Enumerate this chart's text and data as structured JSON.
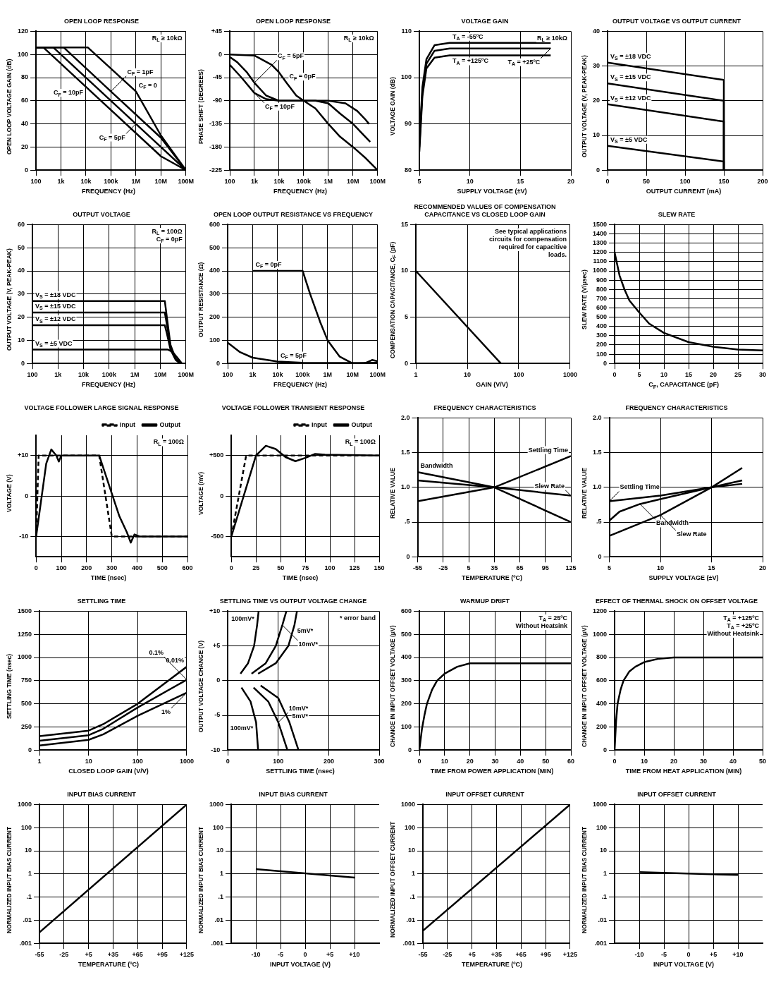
{
  "chart_data": [
    {
      "type": "line",
      "title": "OPEN LOOP RESPONSE",
      "xlabel": "FREQUENCY (Hz)",
      "ylabel": "OPEN LOOP VOLTAGE GAIN (dB)",
      "log": "x",
      "grid": true,
      "xlim": [
        100,
        100000000
      ],
      "xticks": [
        100,
        {
          "value": 1000,
          "label": "1k"
        },
        {
          "value": 10000,
          "label": "10k"
        },
        {
          "value": 100000,
          "label": "100k"
        },
        {
          "value": 1000000,
          "label": "1M"
        },
        {
          "value": 10000000,
          "label": "10M"
        },
        {
          "value": 100000000,
          "label": "100M"
        }
      ],
      "ylim": [
        0,
        120
      ],
      "yticks": [
        0,
        20,
        40,
        60,
        80,
        100,
        120
      ],
      "series": [
        {
          "color": "#000000",
          "x": [
            100,
            12000,
            1000000,
            10000000,
            100000000
          ],
          "values": [
            106,
            106,
            68,
            30,
            0
          ]
        },
        {
          "color": "#000000",
          "x": [
            100,
            1300,
            100000,
            10000000,
            100000000
          ],
          "values": [
            106,
            106,
            68,
            28,
            0
          ]
        },
        {
          "color": "#000000",
          "x": [
            100,
            500,
            1000000,
            10000000,
            100000000
          ],
          "values": [
            106,
            106,
            40,
            20,
            0
          ]
        },
        {
          "color": "#000000",
          "x": [
            100,
            200,
            10000,
            10000000,
            100000000
          ],
          "values": [
            106,
            106,
            72,
            12,
            0
          ]
        }
      ],
      "annotations": [
        "R$_{L}$ ≥ 10kΩ",
        {
          "text": "C$_{F}$ = 0",
          "x": 1000000,
          "y": 68
        },
        {
          "text": "C$_{F}$ = 1pF",
          "x": 100000,
          "y": 68
        },
        {
          "text": "C$_{F}$ = 5pF",
          "x": 1000000,
          "y": 40
        },
        {
          "text": "C$_{F}$ = 10pF",
          "x": 10000,
          "y": 72
        }
      ]
    },
    {
      "type": "line",
      "title": "OPEN LOOP RESPONSE",
      "xlabel": "FREQUENCY (Hz)",
      "ylabel": "PHASE SHIFT (DEGREES)",
      "log": "x",
      "grid": true,
      "xlim": [
        100,
        100000000
      ],
      "xticks": [
        100,
        {
          "value": 1000,
          "label": "1k"
        },
        {
          "value": 10000,
          "label": "10k"
        },
        {
          "value": 100000,
          "label": "100k"
        },
        {
          "value": 1000000,
          "label": "1M"
        },
        {
          "value": 10000000,
          "label": "10M"
        },
        {
          "value": 100000000,
          "label": "100M"
        }
      ],
      "ylim": [
        -225,
        45
      ],
      "yticks": [
        -225,
        -180,
        -135,
        -90,
        -45,
        0,
        {
          "value": 45,
          "label": "+45"
        }
      ],
      "series": [
        {
          "color": "#000000",
          "x": [
            100,
            1000,
            5000,
            10000,
            20000,
            50000,
            100000,
            1000000,
            5000000,
            15000000,
            30000000,
            45000000
          ],
          "values": [
            0,
            -2,
            -20,
            -35,
            -55,
            -80,
            -90,
            -90,
            -95,
            -110,
            -125,
            -135
          ]
        },
        {
          "color": "#000000",
          "x": [
            100,
            200,
            500,
            1000,
            3000,
            10000,
            100000,
            300000,
            1000000,
            3000000,
            10000000,
            20000000,
            50000000
          ],
          "values": [
            -5,
            -15,
            -35,
            -55,
            -80,
            -90,
            -90,
            -90,
            -95,
            -115,
            -135,
            -150,
            -170
          ]
        },
        {
          "color": "#000000",
          "x": [
            100,
            300,
            1000,
            3000,
            10000,
            100000,
            300000,
            1000000,
            3000000,
            10000000,
            30000000,
            100000000
          ],
          "values": [
            -20,
            -45,
            -75,
            -87,
            -90,
            -90,
            -105,
            -135,
            -160,
            -180,
            -200,
            -225
          ]
        }
      ],
      "annotations": [
        "R$_{L}$ ≥ 10kΩ",
        {
          "text": "C$_{F}$ = 0pF",
          "x": 20000,
          "y": -55
        },
        {
          "text": "C$_{F}$ = 5pF",
          "x": 1000,
          "y": -55
        },
        {
          "text": "C$_{F}$ = 10pF",
          "x": 1000,
          "y": -75
        }
      ]
    },
    {
      "type": "line",
      "title": "VOLTAGE GAIN",
      "xlabel": "SUPPLY VOLTAGE (±V)",
      "ylabel": "VOLTAGE GAIN (dB)",
      "grid": true,
      "xlim": [
        5,
        20
      ],
      "xticks": [
        5,
        10,
        15,
        20
      ],
      "ylim": [
        80,
        110
      ],
      "yticks": [
        80,
        90,
        100,
        110
      ],
      "series": [
        {
          "color": "#000000",
          "x": [
            5,
            5.3,
            5.7,
            6.5,
            8,
            18
          ],
          "values": [
            86,
            98,
            104,
            107,
            107.5,
            107.5
          ]
        },
        {
          "color": "#000000",
          "x": [
            5,
            5.3,
            5.7,
            6.5,
            8,
            18
          ],
          "values": [
            85,
            97,
            103,
            105.8,
            106.3,
            106.3
          ]
        },
        {
          "color": "#000000",
          "x": [
            5,
            5.3,
            5.7,
            6.5,
            8,
            18
          ],
          "values": [
            84,
            96,
            102,
            104.3,
            104.8,
            104.8
          ]
        }
      ],
      "annotations": [
        "R$_{L}$ ≥ 10kΩ",
        {
          "text": "T$_{A}$ = -55ºC",
          "x": 8,
          "y": 107.5
        },
        {
          "text": "T$_{A}$ = +125ºC",
          "x": 8,
          "y": 104.8
        },
        {
          "text": "T$_{A}$ = +25ºC",
          "x": 18,
          "y": 106.3
        }
      ]
    },
    {
      "type": "line",
      "title": "OUTPUT VOLTAGE VS OUTPUT CURRENT",
      "xlabel": "OUTPUT CURRENT (mA)",
      "ylabel": "OUTPUT VOLTAGE (V, PEAK-PEAK)",
      "grid": true,
      "xlim": [
        0,
        200
      ],
      "xticks": [
        0,
        50,
        100,
        150,
        200
      ],
      "ylim": [
        0,
        40
      ],
      "yticks": [
        0,
        10,
        20,
        30,
        40
      ],
      "series": [
        {
          "color": "#000000",
          "x": [
            0,
            150,
            150
          ],
          "values": [
            31,
            26,
            0
          ]
        },
        {
          "color": "#000000",
          "x": [
            0,
            150,
            150
          ],
          "values": [
            25,
            20,
            0
          ]
        },
        {
          "color": "#000000",
          "x": [
            0,
            150,
            150
          ],
          "values": [
            19,
            14,
            0
          ]
        },
        {
          "color": "#000000",
          "x": [
            0,
            150,
            150
          ],
          "values": [
            7,
            2.5,
            0
          ]
        }
      ],
      "annotations": [
        {
          "text": "V$_{S}$ = ±18 VDC",
          "x": 0,
          "y": 31
        },
        {
          "text": "V$_{S}$ = ±15 VDC",
          "x": 0,
          "y": 25
        },
        {
          "text": "V$_{S}$ = ±12 VDC",
          "x": 0,
          "y": 19
        },
        {
          "text": "V$_{S}$ = ±5 VDC",
          "x": 0,
          "y": 7
        }
      ]
    },
    {
      "type": "line",
      "title": "OUTPUT VOLTAGE",
      "xlabel": "FREQUENCY (Hz)",
      "ylabel": "OUTPUT VOLTAGE (V, PEAK-PEAK)",
      "log": "x",
      "grid": true,
      "xlim": [
        100,
        100000000
      ],
      "xticks": [
        100,
        {
          "value": 1000,
          "label": "1k"
        },
        {
          "value": 10000,
          "label": "10k"
        },
        {
          "value": 100000,
          "label": "100k"
        },
        {
          "value": 1000000,
          "label": "1M"
        },
        {
          "value": 10000000,
          "label": "10M"
        },
        {
          "value": 100000000,
          "label": "100M"
        }
      ],
      "ylim": [
        0,
        60
      ],
      "yticks": [
        0,
        10,
        20,
        30,
        40,
        50,
        60
      ],
      "series": [
        {
          "color": "#000000",
          "x": [
            100,
            15000000,
            18000000,
            25000000,
            40000000,
            60000000
          ],
          "values": [
            27,
            27,
            20,
            8,
            2,
            0
          ]
        },
        {
          "color": "#000000",
          "x": [
            100,
            15000000,
            18000000,
            25000000,
            40000000,
            60000000
          ],
          "values": [
            22,
            22,
            17,
            7,
            2,
            0
          ]
        },
        {
          "color": "#000000",
          "x": [
            100,
            15000000,
            18000000,
            25000000,
            40000000,
            60000000
          ],
          "values": [
            16.5,
            16.5,
            13,
            6,
            1.5,
            0
          ]
        },
        {
          "color": "#000000",
          "x": [
            100,
            20000000,
            30000000,
            50000000,
            70000000
          ],
          "values": [
            6,
            6,
            5,
            2,
            0
          ]
        }
      ],
      "annotations": [
        "R$_{L}$ = 100Ω",
        "C$_{F}$ = 0pF",
        {
          "text": "V$_{S}$ = ±18 VDC",
          "x": 100,
          "y": 27
        },
        {
          "text": "V$_{S}$ = ±15 VDC",
          "x": 100,
          "y": 22
        },
        {
          "text": "V$_{S}$ = ±12 VDC",
          "x": 100,
          "y": 16.5
        },
        {
          "text": "V$_{S}$ = ±5 VDC",
          "x": 100,
          "y": 6
        }
      ]
    },
    {
      "type": "line",
      "title": "OPEN LOOP OUTPUT RESISTANCE VS FREQUENCY",
      "xlabel": "FREQUENCY (Hz)",
      "ylabel": "OUTPUT RESISTANCE (Ω)",
      "log": "x",
      "grid": true,
      "xlim": [
        100,
        100000000
      ],
      "xticks": [
        100,
        {
          "value": 1000,
          "label": "1k"
        },
        {
          "value": 10000,
          "label": "10k"
        },
        {
          "value": 100000,
          "label": "100k"
        },
        {
          "value": 1000000,
          "label": "1M"
        },
        {
          "value": 10000000,
          "label": "10M"
        },
        {
          "value": 100000000,
          "label": "100M"
        }
      ],
      "ylim": [
        0,
        600
      ],
      "yticks": [
        0,
        100,
        200,
        300,
        400,
        500,
        600
      ],
      "series": [
        {
          "color": "#000000",
          "x": [
            1000,
            100000,
            200000,
            500000,
            1000000,
            3000000,
            10000000,
            30000000,
            60000000,
            100000000
          ],
          "values": [
            400,
            400,
            300,
            180,
            100,
            30,
            0,
            0,
            15,
            10
          ]
        },
        {
          "color": "#000000",
          "x": [
            100,
            300,
            1000,
            10000,
            100000,
            10000000,
            100000000
          ],
          "values": [
            90,
            50,
            25,
            8,
            3,
            2,
            3
          ]
        }
      ],
      "annotations": [
        {
          "text": "C$_{F}$ = 0pF",
          "x": 1000,
          "y": 400
        },
        {
          "text": "C$_{F}$ = 5pF",
          "x": 10000,
          "y": 8
        }
      ]
    },
    {
      "type": "line",
      "title": "RECOMMENDED VALUES OF COMPENSATION CAPACITANCE VS CLOSED LOOP GAIN",
      "xlabel": "GAIN (V/V)",
      "ylabel": "COMPENSATION CAPACITANCE, C$_{F}$ (pF)",
      "log": "x",
      "grid": true,
      "xlim": [
        1,
        1000
      ],
      "xticks": [
        1,
        10,
        100,
        1000
      ],
      "ylim": [
        0,
        15
      ],
      "yticks": [
        0,
        5,
        10,
        15
      ],
      "series": [
        {
          "color": "#000000",
          "x": [
            1,
            45
          ],
          "values": [
            10,
            0
          ]
        }
      ],
      "annotations": [
        "See typical applications circuits for compensation required for capacitive loads."
      ]
    },
    {
      "type": "line",
      "title": "SLEW RATE",
      "xlabel": "C$_{F}$, CAPACITANCE (pF)",
      "ylabel": "SLEW RATE (V/μsec)",
      "grid": true,
      "xlim": [
        0,
        30
      ],
      "xticks": [
        0,
        5,
        10,
        15,
        20,
        25,
        30
      ],
      "ylim": [
        0,
        1500
      ],
      "yticks": [
        0,
        100,
        200,
        300,
        400,
        500,
        600,
        700,
        800,
        900,
        1000,
        1100,
        1200,
        1300,
        1400,
        1500
      ],
      "series": [
        {
          "color": "#000000",
          "x": [
            0,
            1,
            2,
            3,
            5,
            7,
            10,
            15,
            20,
            25,
            30
          ],
          "values": [
            1200,
            950,
            800,
            680,
            550,
            430,
            330,
            230,
            180,
            150,
            140
          ]
        }
      ]
    },
    {
      "type": "line",
      "title": "VOLTAGE FOLLOWER LARGE SIGNAL RESPONSE",
      "xlabel": "TIME (nsec)",
      "ylabel": "VOLTAGE (V)",
      "grid": true,
      "legend": "top right",
      "xlim": [
        0,
        600
      ],
      "xticks": [
        0,
        100,
        200,
        300,
        400,
        500,
        600
      ],
      "ylim": [
        -15,
        15
      ],
      "yticks": [
        -10,
        0,
        {
          "value": 10,
          "label": "+10"
        }
      ],
      "series": [
        {
          "name": "Input",
          "color": "#000000",
          "line_style": "dashed",
          "x": [
            0,
            10,
            250,
            300,
            600
          ],
          "values": [
            -10,
            10,
            10,
            -10,
            -10
          ]
        },
        {
          "name": "Output",
          "color": "#000000",
          "x": [
            0,
            40,
            60,
            80,
            90,
            100,
            250,
            330,
            360,
            375,
            390,
            410,
            600
          ],
          "values": [
            -10,
            8,
            11.5,
            10,
            8.5,
            10,
            10,
            -5,
            -9,
            -11.5,
            -9.5,
            -10,
            -10
          ]
        }
      ],
      "annotations": [
        "R$_{L}$ = 100Ω"
      ]
    },
    {
      "type": "line",
      "title": "VOLTAGE FOLLOWER TRANSIENT RESPONSE",
      "xlabel": "TIME (nsec)",
      "ylabel": "VOLTAGE (mV)",
      "grid": true,
      "legend": "top right",
      "xlim": [
        0,
        150
      ],
      "xticks": [
        0,
        25,
        50,
        75,
        100,
        125,
        150
      ],
      "ylim": [
        -750,
        750
      ],
      "yticks": [
        -500,
        0,
        {
          "value": 500,
          "label": "+500"
        }
      ],
      "series": [
        {
          "name": "Input",
          "color": "#000000",
          "line_style": "dashed",
          "x": [
            0,
            15,
            150
          ],
          "values": [
            -500,
            500,
            500
          ]
        },
        {
          "name": "Output",
          "color": "#000000",
          "x": [
            0,
            25,
            35,
            45,
            55,
            65,
            75,
            85,
            95,
            150
          ],
          "values": [
            -500,
            500,
            620,
            580,
            480,
            430,
            470,
            520,
            510,
            500
          ]
        }
      ],
      "annotations": [
        "R$_{L}$ = 100Ω"
      ]
    },
    {
      "type": "line",
      "title": "FREQUENCY CHARACTERISTICS",
      "xlabel": "TEMPERATURE (ºC)",
      "ylabel": "RELATIVE VALUE",
      "grid": true,
      "xlim": [
        -55,
        125
      ],
      "xticks": [
        -55,
        -25,
        5,
        35,
        65,
        95,
        125
      ],
      "ylim": [
        0,
        2
      ],
      "yticks": [
        0,
        {
          "value": 0.5,
          "label": ".5"
        },
        {
          "value": 1,
          "label": "1.0"
        },
        {
          "value": 1.5,
          "label": "1.5"
        },
        {
          "value": 2,
          "label": "2.0"
        }
      ],
      "series": [
        {
          "color": "#000000",
          "x": [
            -55,
            35,
            125
          ],
          "values": [
            1.22,
            1,
            0.5
          ]
        },
        {
          "color": "#000000",
          "x": [
            -55,
            35,
            125
          ],
          "values": [
            0.8,
            1,
            1.45
          ]
        },
        {
          "color": "#000000",
          "x": [
            -55,
            35,
            125
          ],
          "values": [
            1.1,
            1,
            0.88
          ]
        }
      ],
      "annotations": [
        {
          "text": "Bandwidth",
          "x": -55,
          "y": 1.22
        },
        {
          "text": "Settling Time",
          "x": 125,
          "y": 1.45
        },
        {
          "text": "Slew Rate",
          "x": 125,
          "y": 0.88
        }
      ]
    },
    {
      "type": "line",
      "title": "FREQUENCY CHARACTERISTICS",
      "xlabel": "SUPPLY VOLTAGE (±V)",
      "ylabel": "RELATIVE VALUE",
      "grid": true,
      "xlim": [
        5,
        20
      ],
      "xticks": [
        5,
        10,
        15,
        20
      ],
      "ylim": [
        0,
        2
      ],
      "yticks": [
        0,
        {
          "value": 0.5,
          "label": ".5"
        },
        {
          "value": 1,
          "label": "1.0"
        },
        {
          "value": 1.5,
          "label": "1.5"
        },
        {
          "value": 2,
          "label": "2.0"
        }
      ],
      "series": [
        {
          "color": "#000000",
          "x": [
            5,
            10,
            15,
            18
          ],
          "values": [
            0.8,
            0.88,
            1,
            1.05
          ]
        },
        {
          "color": "#000000",
          "x": [
            5,
            6,
            8,
            10,
            15,
            18
          ],
          "values": [
            0.52,
            0.65,
            0.76,
            0.83,
            1,
            1.1
          ]
        },
        {
          "color": "#000000",
          "x": [
            5,
            10,
            15,
            18
          ],
          "values": [
            0.3,
            0.6,
            1,
            1.28
          ]
        }
      ],
      "annotations": [
        {
          "text": "Settling Time",
          "x": 5,
          "y": 0.8
        },
        {
          "text": "Bandwidth",
          "x": 8,
          "y": 0.76
        },
        {
          "text": "Slew Rate",
          "x": 10,
          "y": 0.6
        }
      ]
    },
    {
      "type": "line",
      "title": "SETTLING TIME",
      "xlabel": "CLOSED LOOP GAIN (V/V)",
      "ylabel": "SETTLING TIME (nsec)",
      "log": "x",
      "grid": true,
      "xlim": [
        1,
        1000
      ],
      "xticks": [
        1,
        10,
        100,
        1000
      ],
      "ylim": [
        0,
        1500
      ],
      "yticks": [
        0,
        250,
        500,
        750,
        1000,
        1250,
        1500
      ],
      "series": [
        {
          "color": "#000000",
          "x": [
            1,
            10,
            20,
            100,
            1000
          ],
          "values": [
            150,
            210,
            280,
            500,
            900
          ]
        },
        {
          "color": "#000000",
          "x": [
            1,
            10,
            20,
            100,
            1000
          ],
          "values": [
            100,
            160,
            230,
            460,
            760
          ]
        },
        {
          "color": "#000000",
          "x": [
            1,
            10,
            20,
            100,
            1000
          ],
          "values": [
            50,
            110,
            170,
            370,
            620
          ]
        }
      ],
      "annotations": [
        {
          "text": "0.01%",
          "x": 1000,
          "y": 900
        },
        {
          "text": "0.1%",
          "x": 1000,
          "y": 760
        },
        {
          "text": "1%",
          "x": 1000,
          "y": 620
        }
      ]
    },
    {
      "type": "line",
      "title": "SETTLING TIME VS OUTPUT VOLTAGE CHANGE",
      "xlabel": "SETTLING TIME (nsec)",
      "ylabel": "OUTPUT VOLTAGE CHANGE (V)",
      "grid": true,
      "xlim": [
        0,
        300
      ],
      "xticks": [
        0,
        100,
        200,
        300
      ],
      "ylim": [
        -10,
        10
      ],
      "yticks": [
        -10,
        -5,
        0,
        {
          "value": 5,
          "label": "+5"
        },
        {
          "value": 10,
          "label": "+10"
        }
      ],
      "series": [
        {
          "color": "#000000",
          "x": [
            25,
            40,
            52,
            58,
            61
          ],
          "values": [
            1,
            2.5,
            5,
            8,
            10
          ]
        },
        {
          "color": "#000000",
          "x": [
            47,
            75,
            95,
            108,
            116
          ],
          "values": [
            1,
            2.5,
            5,
            8,
            10
          ]
        },
        {
          "color": "#000000",
          "x": [
            60,
            95,
            120,
            132,
            137
          ],
          "values": [
            1,
            2.5,
            5,
            8,
            10
          ]
        },
        {
          "color": "#000000",
          "x": [
            27,
            45,
            56,
            60
          ],
          "values": [
            -1,
            -3,
            -6,
            -10
          ]
        },
        {
          "color": "#000000",
          "x": [
            51,
            80,
            100,
            118
          ],
          "values": [
            -1,
            -3,
            -6,
            -10
          ]
        },
        {
          "color": "#000000",
          "x": [
            65,
            100,
            122,
            140
          ],
          "values": [
            -0.7,
            -2.5,
            -6,
            -10
          ]
        }
      ],
      "annotations": [
        "* error band",
        {
          "text": "100mV*",
          "x": 58,
          "y": 8
        },
        {
          "text": "10mV*",
          "x": 108,
          "y": 8
        },
        {
          "text": "5mV*",
          "x": 132,
          "y": 8
        },
        {
          "text": "100mV*",
          "x": 56,
          "y": -6
        },
        {
          "text": "10mV*",
          "x": 100,
          "y": -6
        },
        {
          "text": "5mV*",
          "x": 122,
          "y": -6
        }
      ]
    },
    {
      "type": "line",
      "title": "WARMUP DRIFT",
      "xlabel": "TIME FROM POWER APPLICATION (MIN)",
      "ylabel": "CHANGE IN INPUT OFFSET VOLTAGE (μV)",
      "grid": true,
      "xlim": [
        0,
        60
      ],
      "xticks": [
        0,
        10,
        20,
        30,
        40,
        50,
        60
      ],
      "ylim": [
        0,
        600
      ],
      "yticks": [
        0,
        100,
        200,
        300,
        400,
        500,
        600
      ],
      "series": [
        {
          "color": "#000000",
          "x": [
            0,
            1,
            2,
            3,
            5,
            7,
            10,
            15,
            20,
            30,
            60
          ],
          "values": [
            0,
            90,
            150,
            200,
            260,
            300,
            330,
            360,
            375,
            375,
            375
          ]
        }
      ],
      "annotations": [
        "T$_{A}$ = 25ºC",
        "Without Heatsink"
      ]
    },
    {
      "type": "line",
      "title": "EFFECT OF THERMAL SHOCK ON OFFSET VOLTAGE",
      "xlabel": "TIME FROM HEAT APPLICATION (MIN)",
      "ylabel": "CHANGE IN INPUT OFFSET VOLTAGE (μV)",
      "grid": true,
      "xlim": [
        0,
        50
      ],
      "xticks": [
        0,
        10,
        20,
        30,
        40,
        50
      ],
      "ylim": [
        0,
        1200
      ],
      "yticks": [
        0,
        200,
        400,
        600,
        800,
        1000,
        1200
      ],
      "series": [
        {
          "color": "#000000",
          "x": [
            0,
            0.5,
            1,
            2,
            3,
            5,
            7,
            10,
            15,
            20,
            50
          ],
          "values": [
            0,
            250,
            400,
            520,
            600,
            680,
            720,
            760,
            790,
            800,
            800
          ]
        }
      ],
      "annotations": [
        "T$_{A}$ = +125ºC",
        "T$_{A}$ = +25ºC",
        "Without Heatsink"
      ]
    },
    {
      "type": "line",
      "title": "INPUT BIAS CURRENT",
      "xlabel": "TEMPERATURE (ºC)",
      "ylabel": "NORMALIZED INPUT BIAS CURRENT",
      "log": "y",
      "grid": true,
      "xlim": [
        -55,
        125
      ],
      "xticks": [
        -55,
        -25,
        {
          "value": 5,
          "label": "+5"
        },
        {
          "value": 35,
          "label": "+35"
        },
        {
          "value": 65,
          "label": "+65"
        },
        {
          "value": 95,
          "label": "+95"
        },
        {
          "value": 125,
          "label": "+125"
        }
      ],
      "ylim": [
        0.001,
        1000
      ],
      "yticks": [
        {
          "value": 0.001,
          "label": ".001"
        },
        {
          "value": 0.01,
          "label": ".01"
        },
        {
          "value": 0.1,
          "label": ".1"
        },
        1,
        10,
        100,
        1000
      ],
      "series": [
        {
          "color": "#000000",
          "x": [
            -55,
            125
          ],
          "values": [
            0.003,
            1000
          ]
        }
      ]
    },
    {
      "type": "line",
      "title": "INPUT BIAS CURRENT",
      "xlabel": "INPUT VOLTAGE (V)",
      "ylabel": "NORMALIZED INPUT BIAS CURRENT",
      "log": "y",
      "grid": true,
      "xlim": [
        -15,
        15
      ],
      "xticks": [
        -10,
        -5,
        0,
        {
          "value": 5,
          "label": "+5"
        },
        {
          "value": 10,
          "label": "+10"
        }
      ],
      "ylim": [
        0.001,
        1000
      ],
      "yticks": [
        {
          "value": 0.001,
          "label": ".001"
        },
        {
          "value": 0.01,
          "label": ".01"
        },
        {
          "value": 0.1,
          "label": ".1"
        },
        1,
        10,
        100,
        1000
      ],
      "series": [
        {
          "color": "#000000",
          "x": [
            -10,
            10
          ],
          "values": [
            1.6,
            0.7
          ]
        }
      ]
    },
    {
      "type": "line",
      "title": "INPUT OFFSET CURRENT",
      "xlabel": "TEMPERATURE (ºC)",
      "ylabel": "NORMALIZED INPUT OFFSET CURRENT",
      "log": "y",
      "grid": true,
      "xlim": [
        -55,
        125
      ],
      "xticks": [
        -55,
        -25,
        {
          "value": 5,
          "label": "+5"
        },
        {
          "value": 35,
          "label": "+35"
        },
        {
          "value": 65,
          "label": "+65"
        },
        {
          "value": 95,
          "label": "+95"
        },
        {
          "value": 125,
          "label": "+125"
        }
      ],
      "ylim": [
        0.001,
        1000
      ],
      "yticks": [
        {
          "value": 0.001,
          "label": ".001"
        },
        {
          "value": 0.01,
          "label": ".01"
        },
        {
          "value": 0.1,
          "label": ".1"
        },
        1,
        10,
        100,
        1000
      ],
      "series": [
        {
          "color": "#000000",
          "x": [
            -55,
            125
          ],
          "values": [
            0.0035,
            1000
          ]
        }
      ]
    },
    {
      "type": "line",
      "title": "INPUT OFFSET CURRENT",
      "xlabel": "INPUT VOLTAGE (V)",
      "ylabel": "NORMALIZED INPUT BIAS CURRENT",
      "log": "y",
      "grid": true,
      "xlim": [
        -15,
        15
      ],
      "xticks": [
        -10,
        -5,
        0,
        {
          "value": 5,
          "label": "+5"
        },
        {
          "value": 10,
          "label": "+10"
        }
      ],
      "ylim": [
        0.001,
        1000
      ],
      "yticks": [
        {
          "value": 0.001,
          "label": ".001"
        },
        {
          "value": 0.01,
          "label": ".01"
        },
        {
          "value": 0.1,
          "label": ".1"
        },
        1,
        10,
        100,
        1000
      ],
      "series": [
        {
          "color": "#000000",
          "x": [
            -10,
            10
          ],
          "values": [
            1.2,
            0.9
          ]
        }
      ]
    }
  ]
}
